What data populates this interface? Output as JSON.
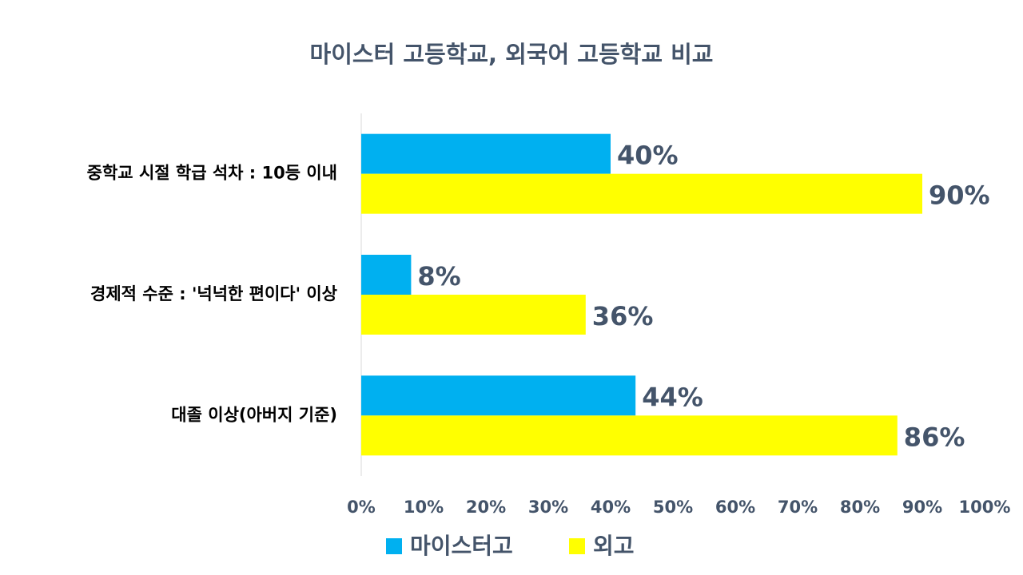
{
  "chart_data": {
    "type": "bar",
    "orientation": "horizontal",
    "title": "마이스터 고등학교, 외국어 고등학교 비교",
    "categories": [
      "중학교 시절 학급 석차 : 10등 이내",
      "경제적 수준 : '넉넉한 편이다' 이상",
      "대졸 이상(아버지 기준)"
    ],
    "series": [
      {
        "name": "마이스터고",
        "color": "#00b0f0",
        "values": [
          40,
          8,
          44
        ],
        "value_labels": [
          "40%",
          "8%",
          "44%"
        ]
      },
      {
        "name": "외고",
        "color": "#ffff00",
        "values": [
          90,
          36,
          86
        ],
        "value_labels": [
          "90%",
          "36%",
          "86%"
        ]
      }
    ],
    "xlim": [
      0,
      100
    ],
    "xticks": [
      {
        "value": 0,
        "label": "0%"
      },
      {
        "value": 10,
        "label": "10%"
      },
      {
        "value": 20,
        "label": "20%"
      },
      {
        "value": 30,
        "label": "30%"
      },
      {
        "value": 40,
        "label": "40%"
      },
      {
        "value": 50,
        "label": "50%"
      },
      {
        "value": 60,
        "label": "60%"
      },
      {
        "value": 70,
        "label": "70%"
      },
      {
        "value": 80,
        "label": "80%"
      },
      {
        "value": 90,
        "label": "90%"
      },
      {
        "value": 100,
        "label": "100%"
      }
    ],
    "grid": false,
    "legend": "bottom"
  }
}
